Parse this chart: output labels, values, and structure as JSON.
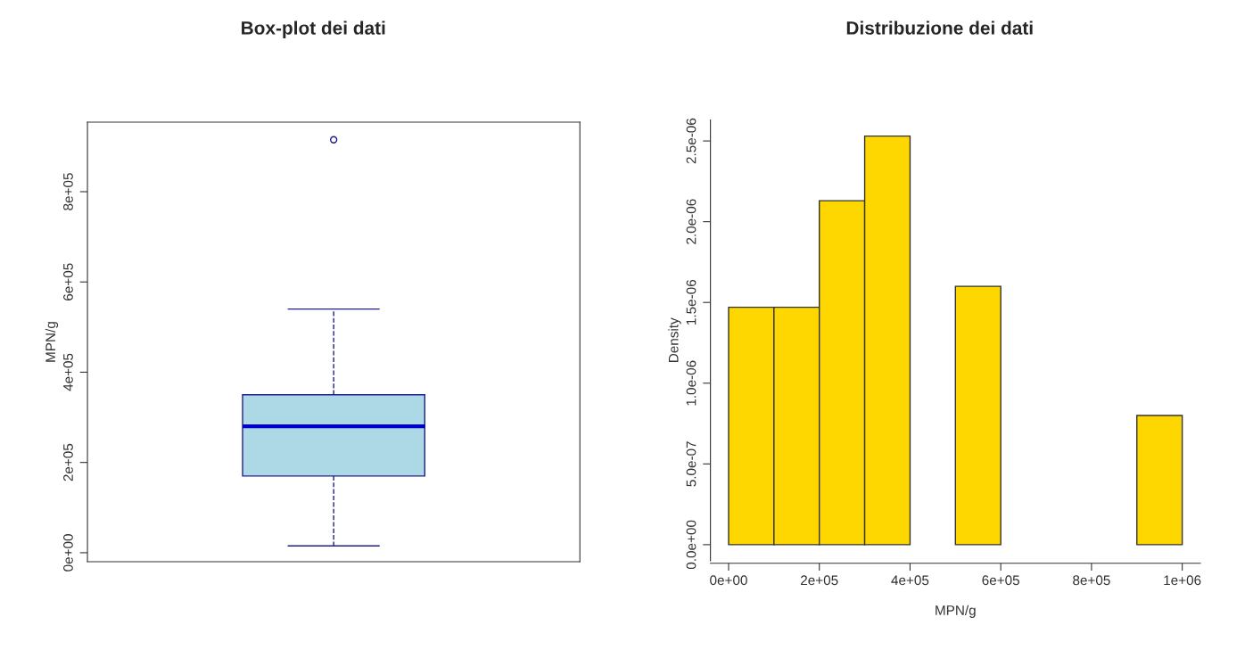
{
  "chart_data": [
    {
      "type": "box",
      "title": "Box-plot dei dati",
      "ylabel": "MPN/g",
      "categories": [
        null
      ],
      "color": "#add8e6",
      "boxes": [
        {
          "low": 15000,
          "q1": 170000,
          "median": 280000,
          "q3": 350000,
          "high": 540000,
          "outliers": [
            915000
          ]
        }
      ],
      "ylim": [
        -20000,
        954000
      ],
      "yticks": [
        {
          "value": 0,
          "label": "0e+00"
        },
        {
          "value": 200000,
          "label": "2e+05"
        },
        {
          "value": 400000,
          "label": "4e+05"
        },
        {
          "value": 600000,
          "label": "6e+05"
        },
        {
          "value": 800000,
          "label": "8e+05"
        }
      ],
      "grid": false,
      "legend": false
    },
    {
      "type": "histogram",
      "title": "Distribuzione dei dati",
      "xlabel": "MPN/g",
      "ylabel": "Density",
      "color": "#ffd700",
      "bins": [
        0,
        100000,
        200000,
        300000,
        400000,
        500000,
        600000,
        700000,
        800000,
        900000,
        1000000
      ],
      "values": [
        1.47e-06,
        1.47e-06,
        2.13e-06,
        2.53e-06,
        0,
        1.6e-06,
        0,
        0,
        0,
        8e-07
      ],
      "xlim": [
        -40000,
        1040000
      ],
      "ylim": [
        -1e-07,
        2.63e-06
      ],
      "xticks": [
        {
          "value": 0,
          "label": "0e+00"
        },
        {
          "value": 200000,
          "label": "2e+05"
        },
        {
          "value": 400000,
          "label": "4e+05"
        },
        {
          "value": 600000,
          "label": "6e+05"
        },
        {
          "value": 800000,
          "label": "8e+05"
        },
        {
          "value": 1000000,
          "label": "1e+06"
        }
      ],
      "yticks": [
        {
          "value": 0,
          "label": "0.0e+00"
        },
        {
          "value": 5e-07,
          "label": "5.0e-07"
        },
        {
          "value": 1e-06,
          "label": "1.0e-06"
        },
        {
          "value": 1.5e-06,
          "label": "1.5e-06"
        },
        {
          "value": 2e-06,
          "label": "2.0e-06"
        },
        {
          "value": 2.5e-06,
          "label": "2.5e-06"
        }
      ],
      "grid": false,
      "legend": false
    }
  ]
}
